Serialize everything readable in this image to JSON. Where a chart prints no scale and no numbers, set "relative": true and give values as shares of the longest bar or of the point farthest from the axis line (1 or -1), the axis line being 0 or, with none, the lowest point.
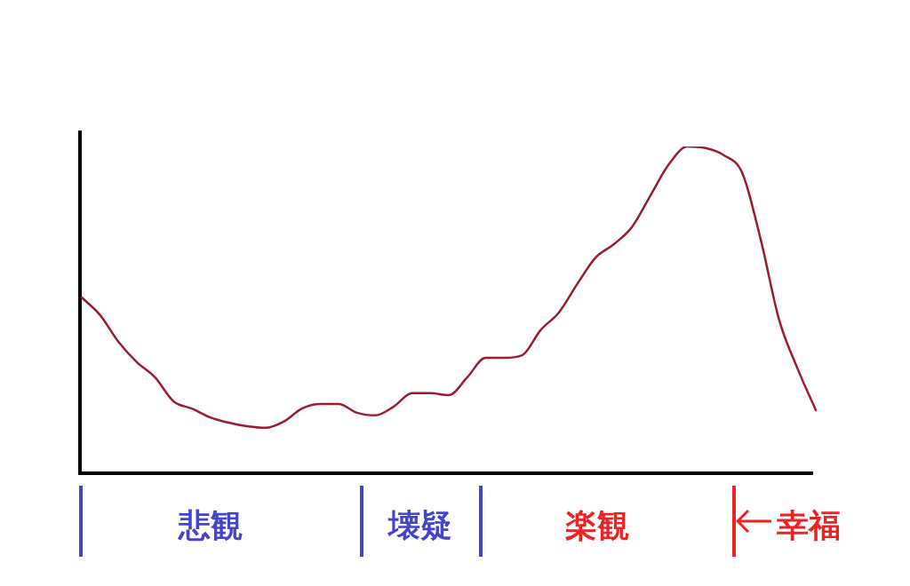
{
  "chart_data": {
    "type": "line",
    "relative": true,
    "marker": "none",
    "legend": false,
    "categories": [
      null,
      null,
      null,
      null,
      null,
      null,
      null,
      null,
      null,
      null,
      null,
      null,
      null,
      null,
      null,
      null,
      null,
      null,
      null,
      null,
      null,
      null,
      null,
      null,
      null,
      null,
      null,
      null,
      null,
      null,
      null,
      null,
      null,
      null,
      null,
      null,
      null,
      null,
      null,
      null,
      null
    ],
    "series": [
      {
        "color": "#9b1b30",
        "values": [
          0.538,
          0.484,
          0.402,
          0.34,
          0.293,
          0.22,
          0.198,
          0.171,
          0.155,
          0.144,
          0.139,
          0.158,
          0.198,
          0.212,
          0.212,
          0.185,
          0.177,
          0.204,
          0.245,
          0.245,
          0.239,
          0.293,
          0.353,
          0.353,
          0.361,
          0.438,
          0.492,
          0.579,
          0.66,
          0.701,
          0.755,
          0.851,
          0.946,
          1,
          0.995,
          0.973,
          0.918,
          0.715,
          0.47,
          0.321,
          0.193
        ]
      }
    ],
    "annotations": [
      "悲観",
      "壊疑",
      "楽観",
      "幸福"
    ]
  }
}
